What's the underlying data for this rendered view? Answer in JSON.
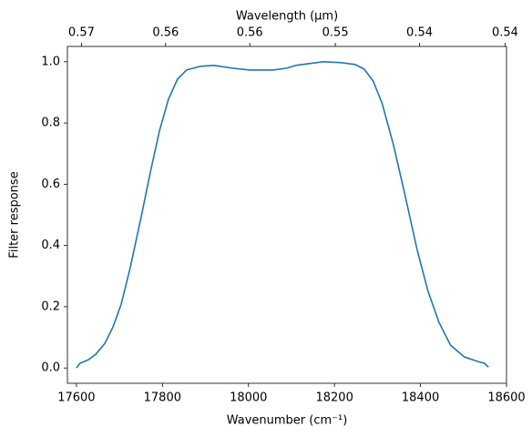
{
  "chart_data": {
    "type": "line",
    "xlabel": "Wavenumber (cm⁻¹)",
    "ylabel": "Filter response",
    "x2label": "Wavelength (μm)",
    "xlim": [
      17579,
      18600
    ],
    "xticks": [
      17600,
      17800,
      18000,
      18200,
      18400,
      18600
    ],
    "x2lim": [
      0.5689,
      0.5376
    ],
    "x2ticks": [
      {
        "value": 0.5679,
        "label": "0.57"
      },
      {
        "value": 0.5619,
        "label": "0.56"
      },
      {
        "value": 0.5559,
        "label": "0.56"
      },
      {
        "value": 0.5498,
        "label": "0.55"
      },
      {
        "value": 0.5438,
        "label": "0.54"
      },
      {
        "value": 0.5377,
        "label": "0.54"
      }
    ],
    "ylim": [
      -0.05,
      1.05
    ],
    "yticks": [
      {
        "value": 0,
        "label": "0.0"
      },
      0.2,
      0.4,
      0.6,
      0.8,
      {
        "value": 1,
        "label": "1.0"
      }
    ],
    "series": [
      {
        "color": "#1f77b4",
        "x": [
          17600,
          17608,
          17628,
          17645,
          17666,
          17685,
          17704,
          17725,
          17750,
          17772,
          17793,
          17814,
          17835,
          17856,
          17888,
          17920,
          17962,
          18004,
          18057,
          18089,
          18110,
          18142,
          18174,
          18216,
          18248,
          18269,
          18290,
          18311,
          18337,
          18364,
          18392,
          18417,
          18443,
          18470,
          18502,
          18534,
          18549,
          18558
        ],
        "values": [
          0.0,
          0.015,
          0.027,
          0.045,
          0.08,
          0.134,
          0.208,
          0.327,
          0.49,
          0.64,
          0.774,
          0.878,
          0.943,
          0.973,
          0.985,
          0.988,
          0.979,
          0.973,
          0.973,
          0.979,
          0.988,
          0.994,
          1.0,
          0.997,
          0.991,
          0.976,
          0.937,
          0.863,
          0.729,
          0.565,
          0.387,
          0.253,
          0.149,
          0.074,
          0.036,
          0.021,
          0.015,
          0.003
        ]
      }
    ]
  }
}
